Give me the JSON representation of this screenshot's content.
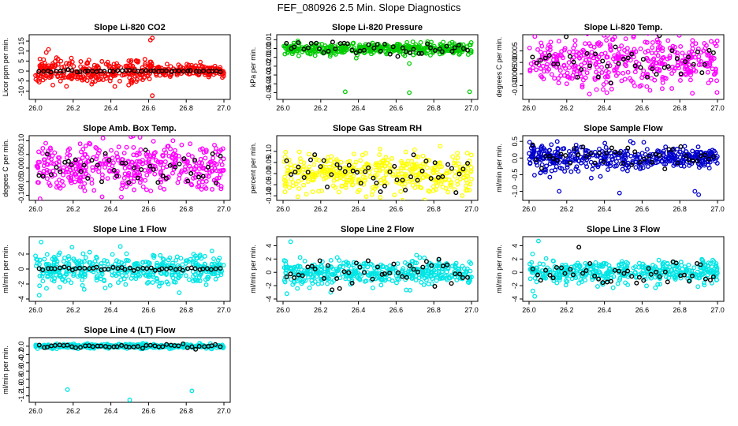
{
  "figure": {
    "title": "FEF_080926  2.5 Min. Slope Diagnostics"
  },
  "chart_data": [
    {
      "type": "scatter",
      "title": "Slope Li-820 CO2",
      "ylabel": "Licor ppm per min.",
      "x_range": [
        26.0,
        27.0
      ],
      "xticks": [
        "26.0",
        "26.2",
        "26.4",
        "26.6",
        "26.8",
        "27.0"
      ],
      "ylim": [
        -13,
        17
      ],
      "yticks": [
        "-10",
        "-5",
        "0",
        "5",
        "10",
        "15"
      ],
      "color": "#ff0000",
      "n_points": 420,
      "spread": 1.6,
      "spike_frac": 0.5,
      "seed": 11,
      "outliers": [
        [
          26.61,
          15.5
        ],
        [
          26.62,
          16.5
        ],
        [
          26.62,
          -12.3
        ],
        [
          26.12,
          6.0
        ],
        [
          26.04,
          -4.5
        ]
      ],
      "black_spread": 0.25
    },
    {
      "type": "scatter",
      "title": "Slope Li-820 Pressure",
      "ylabel": "kPa per min.",
      "x_range": [
        26.0,
        27.0
      ],
      "xticks": [
        "26.0",
        "26.2",
        "26.4",
        "26.6",
        "26.8",
        "27.0"
      ],
      "ylim": [
        -0.055,
        0.013
      ],
      "yticks": [
        "-0.05",
        "-0.04",
        "-0.03",
        "-0.02",
        "-0.01",
        "0.00",
        "0.01"
      ],
      "color": "#00cc00",
      "n_points": 420,
      "spread": 0.003,
      "spike_frac": 0.0,
      "seed": 23,
      "outliers": [
        [
          26.33,
          -0.049
        ],
        [
          26.67,
          -0.05
        ],
        [
          26.99,
          -0.049
        ],
        [
          26.67,
          -0.017
        ],
        [
          26.17,
          -0.008
        ]
      ],
      "black_spread": 0.004
    },
    {
      "type": "scatter",
      "title": "Slope Li-820 Temp.",
      "ylabel": "degrees C per min.",
      "x_range": [
        26.0,
        27.0
      ],
      "xticks": [
        "26.0",
        "26.2",
        "26.4",
        "26.6",
        "26.8",
        "27.0"
      ],
      "ylim": [
        -0.015,
        0.011
      ],
      "yticks": [
        "-0.010",
        "-0.005",
        "0.000",
        "0.005"
      ],
      "color": "#ff00ff",
      "n_points": 420,
      "spread": 0.0055,
      "spike_frac": 0.0,
      "seed": 37,
      "outliers": [],
      "black_spread": 0.004
    },
    {
      "type": "scatter",
      "title": "Slope Amb. Box Temp.",
      "ylabel": "degees C per min.",
      "x_range": [
        26.0,
        27.0
      ],
      "xticks": [
        "26.0",
        "26.2",
        "26.4",
        "26.6",
        "26.8",
        "27.0"
      ],
      "ylim": [
        -0.11,
        0.11
      ],
      "yticks": [
        "-0.10",
        "-0.05",
        "0.00",
        "0.05",
        "0.10"
      ],
      "color": "#ff00ff",
      "n_points": 420,
      "spread": 0.045,
      "spike_frac": 0.0,
      "seed": 41,
      "outliers": [],
      "black_spread": 0.035
    },
    {
      "type": "scatter",
      "title": "Slope Gas Stream RH",
      "ylabel": "percent per min.",
      "x_range": [
        26.0,
        27.0
      ],
      "xticks": [
        "26.0",
        "26.2",
        "26.4",
        "26.6",
        "26.8",
        "27.0"
      ],
      "ylim": [
        -0.11,
        0.16
      ],
      "yticks": [
        "-0.10",
        "-0.05",
        "0.00",
        "0.05",
        "0.10"
      ],
      "color": "#ffff00",
      "n_points": 420,
      "spread": 0.045,
      "spike_frac": 0.0,
      "seed": 53,
      "outliers": [],
      "black_spread": 0.04
    },
    {
      "type": "scatter",
      "title": "Slope Sample Flow",
      "ylabel": "ml/min per min.",
      "x_range": [
        26.0,
        27.0
      ],
      "xticks": [
        "26.0",
        "26.2",
        "26.4",
        "26.6",
        "26.8",
        "27.0"
      ],
      "ylim": [
        -1.2,
        0.6
      ],
      "yticks": [
        "-1.0",
        "-0.5",
        "0.0",
        "0.5"
      ],
      "color": "#0000cc",
      "n_points": 420,
      "spread": 0.13,
      "spike_frac": 0.2,
      "seed": 67,
      "outliers": [
        [
          26.16,
          -1.0
        ],
        [
          26.48,
          -1.05
        ],
        [
          26.88,
          -1.0
        ],
        [
          26.9,
          -1.1
        ],
        [
          26.33,
          -0.6
        ],
        [
          26.06,
          -0.45
        ]
      ],
      "black_spread": 0.18
    },
    {
      "type": "scatter",
      "title": "Slope Line 1 Flow",
      "ylabel": "ml/min per min.",
      "x_range": [
        26.0,
        27.0
      ],
      "xticks": [
        "26.0",
        "26.2",
        "26.4",
        "26.6",
        "26.8",
        "27.0"
      ],
      "ylim": [
        -4,
        4
      ],
      "yticks": [
        "-4",
        "-2",
        "0",
        "2"
      ],
      "color": "#00e5e5",
      "n_points": 420,
      "spread": 1.0,
      "spike_frac": 0.0,
      "seed": 71,
      "outliers": [
        [
          26.03,
          3.6
        ],
        [
          26.02,
          -3.5
        ],
        [
          26.45,
          3.0
        ]
      ],
      "black_spread": 0.12
    },
    {
      "type": "scatter",
      "title": "Slope Line 2 Flow",
      "ylabel": "ml/min per min.",
      "x_range": [
        26.0,
        27.0
      ],
      "xticks": [
        "26.0",
        "26.2",
        "26.4",
        "26.6",
        "26.8",
        "27.0"
      ],
      "ylim": [
        -4,
        5
      ],
      "yticks": [
        "-4",
        "-2",
        "0",
        "2",
        "4"
      ],
      "color": "#00e5e5",
      "n_points": 420,
      "spread": 0.9,
      "spike_frac": 0.0,
      "seed": 83,
      "outliers": [
        [
          26.04,
          4.6
        ],
        [
          26.02,
          -3.2
        ]
      ],
      "black_spread": 1.1
    },
    {
      "type": "scatter",
      "title": "Slope Line 3 Flow",
      "ylabel": "ml/min per min.",
      "x_range": [
        26.0,
        27.0
      ],
      "xticks": [
        "26.0",
        "26.2",
        "26.4",
        "26.6",
        "26.8",
        "27.0"
      ],
      "ylim": [
        -4,
        5
      ],
      "yticks": [
        "-4",
        "-2",
        "0",
        "2",
        "4"
      ],
      "color": "#00e5e5",
      "n_points": 420,
      "spread": 0.9,
      "spike_frac": 0.0,
      "seed": 97,
      "outliers": [
        [
          26.05,
          4.7
        ],
        [
          26.03,
          -3.6
        ],
        [
          26.02,
          -2.8
        ]
      ],
      "black_spread": 1.0
    },
    {
      "type": "scatter",
      "title": "Slope Line 4 (LT) Flow",
      "ylabel": "ml/min per min.",
      "x_range": [
        26.0,
        27.0
      ],
      "xticks": [
        "26.0",
        "26.2",
        "26.4",
        "26.6",
        "26.8",
        "27.0"
      ],
      "ylim": [
        -1.3,
        0.15
      ],
      "yticks": [
        "-1.2",
        "-1.0",
        "-0.8",
        "-0.6",
        "-0.4",
        "-0.2",
        "0.0"
      ],
      "color": "#00e5e5",
      "n_points": 420,
      "spread": 0.025,
      "spike_frac": 0.0,
      "seed": 101,
      "outliers": [
        [
          26.17,
          -1.05
        ],
        [
          26.5,
          -1.3
        ],
        [
          26.83,
          -1.08
        ]
      ],
      "black_spread": 0.03
    }
  ]
}
